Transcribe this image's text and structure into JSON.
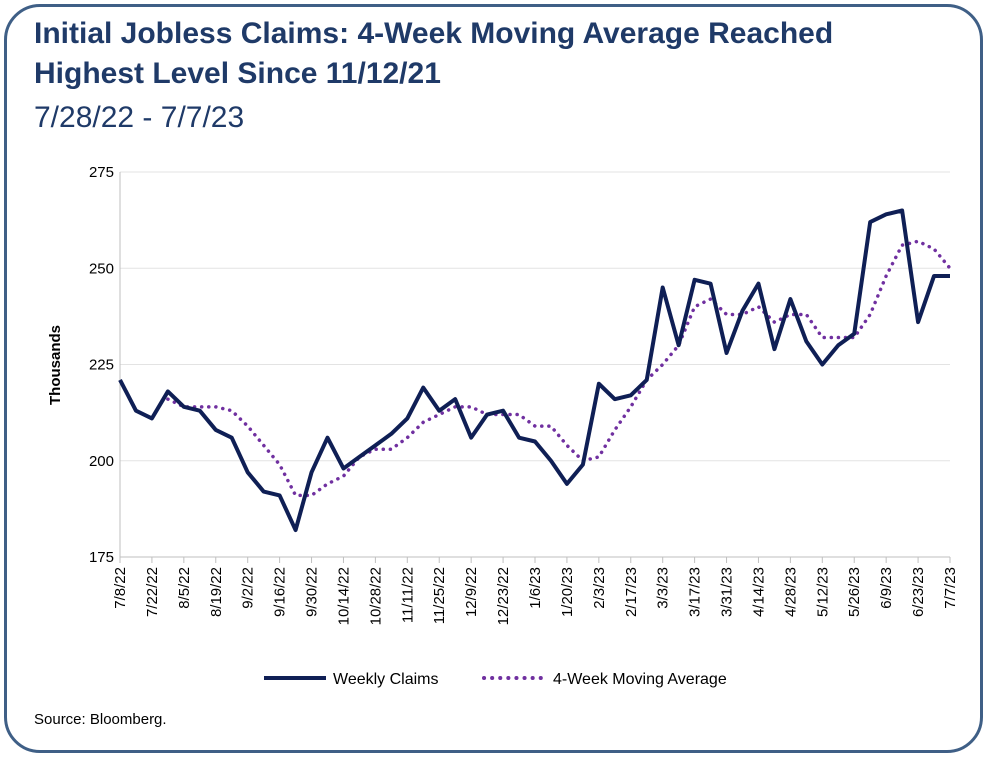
{
  "colors": {
    "weekly": "#0f1f55",
    "moving_avg": "#7030a0",
    "border": "#3f5f86",
    "title": "#1f3a68"
  },
  "source": "Source: Bloomberg.",
  "chart_data": {
    "type": "line",
    "title": "Initial Jobless Claims: 4-Week Moving Average Reached Highest Level Since 11/12/21",
    "title_line1": "Initial Jobless Claims: 4-Week Moving Average Reached",
    "title_line2": "Highest Level Since 11/12/21",
    "subtitle": "7/28/22 - 7/7/23",
    "ylabel": "Thousands",
    "xlabel": "",
    "ylim": [
      175,
      275
    ],
    "yticks": [
      175,
      200,
      225,
      250,
      275
    ],
    "grid": true,
    "legend_position": "bottom",
    "xtick_labels": [
      "7/8/22",
      "7/22/22",
      "8/5/22",
      "8/19/22",
      "9/2/22",
      "9/16/22",
      "9/30/22",
      "10/14/22",
      "10/28/22",
      "11/11/22",
      "11/25/22",
      "12/9/22",
      "12/23/22",
      "1/6/23",
      "1/20/23",
      "2/3/23",
      "2/17/23",
      "3/3/23",
      "3/17/23",
      "3/31/23",
      "4/14/23",
      "4/28/23",
      "5/12/23",
      "5/26/23",
      "6/9/23",
      "6/23/23",
      "7/7/23"
    ],
    "x": [
      "7/8/22",
      "7/15/22",
      "7/22/22",
      "7/29/22",
      "8/5/22",
      "8/12/22",
      "8/19/22",
      "8/26/22",
      "9/2/22",
      "9/9/22",
      "9/16/22",
      "9/23/22",
      "9/30/22",
      "10/7/22",
      "10/14/22",
      "10/21/22",
      "10/28/22",
      "11/4/22",
      "11/11/22",
      "11/18/22",
      "11/25/22",
      "12/2/22",
      "12/9/22",
      "12/16/22",
      "12/23/22",
      "12/30/22",
      "1/6/23",
      "1/13/23",
      "1/20/23",
      "1/27/23",
      "2/3/23",
      "2/10/23",
      "2/17/23",
      "2/24/23",
      "3/3/23",
      "3/10/23",
      "3/17/23",
      "3/24/23",
      "3/31/23",
      "4/7/23",
      "4/14/23",
      "4/21/23",
      "4/28/23",
      "5/5/23",
      "5/12/23",
      "5/19/23",
      "5/26/23",
      "6/2/23",
      "6/9/23",
      "6/16/23",
      "6/23/23",
      "6/30/23",
      "7/7/23"
    ],
    "series": [
      {
        "name": "Weekly Claims",
        "style": "solid",
        "values": [
          221,
          213,
          211,
          218,
          214,
          213,
          208,
          206,
          197,
          192,
          191,
          182,
          197,
          206,
          198,
          201,
          204,
          207,
          211,
          219,
          213,
          216,
          206,
          212,
          213,
          206,
          205,
          200,
          194,
          199,
          220,
          216,
          217,
          221,
          245,
          230,
          247,
          246,
          228,
          239,
          246,
          229,
          242,
          231,
          225,
          230,
          233,
          262,
          264,
          265,
          236,
          248,
          248
        ]
      },
      {
        "name": "4-Week Moving Average",
        "style": "dotted",
        "values": [
          null,
          null,
          null,
          216,
          214,
          214,
          214,
          213,
          209,
          204,
          199,
          191,
          191,
          194,
          196,
          201,
          203,
          203,
          206,
          210,
          212,
          214,
          214,
          212,
          212,
          212,
          209,
          209,
          204,
          200,
          201,
          208,
          214,
          221,
          225,
          230,
          240,
          242,
          238,
          238,
          240,
          236,
          238,
          238,
          232,
          232,
          232,
          238,
          248,
          256,
          257,
          255,
          250
        ]
      }
    ]
  }
}
